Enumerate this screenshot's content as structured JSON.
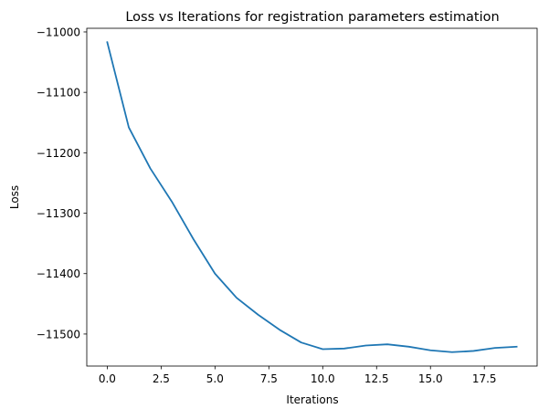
{
  "chart_data": {
    "type": "line",
    "title": "Loss vs Iterations for registration parameters estimation",
    "xlabel": "Iterations",
    "ylabel": "Loss",
    "xlim": [
      -0.95,
      19.95
    ],
    "ylim": [
      -11553,
      -10994
    ],
    "xticks": [
      0.0,
      2.5,
      5.0,
      7.5,
      10.0,
      12.5,
      15.0,
      17.5
    ],
    "xtick_labels": [
      "0.0",
      "2.5",
      "5.0",
      "7.5",
      "10.0",
      "12.5",
      "15.0",
      "17.5"
    ],
    "yticks": [
      -11000,
      -11100,
      -11200,
      -11300,
      -11400,
      -11500
    ],
    "ytick_labels": [
      "−11000",
      "−11100",
      "−11200",
      "−11300",
      "−11400",
      "−11500"
    ],
    "grid": false,
    "legend": "none",
    "series": [
      {
        "color": "#1f77b4",
        "x": [
          0,
          1,
          2,
          3,
          4,
          5,
          6,
          7,
          8,
          9,
          10,
          11,
          12,
          13,
          14,
          15,
          16,
          17,
          18,
          19
        ],
        "y": [
          -11017,
          -11158,
          -11226,
          -11281,
          -11343,
          -11400,
          -11440,
          -11468,
          -11493,
          -11514,
          -11525,
          -11524,
          -11519,
          -11517,
          -11521,
          -11527,
          -11530,
          -11528,
          -11523,
          -11521
        ]
      }
    ]
  }
}
